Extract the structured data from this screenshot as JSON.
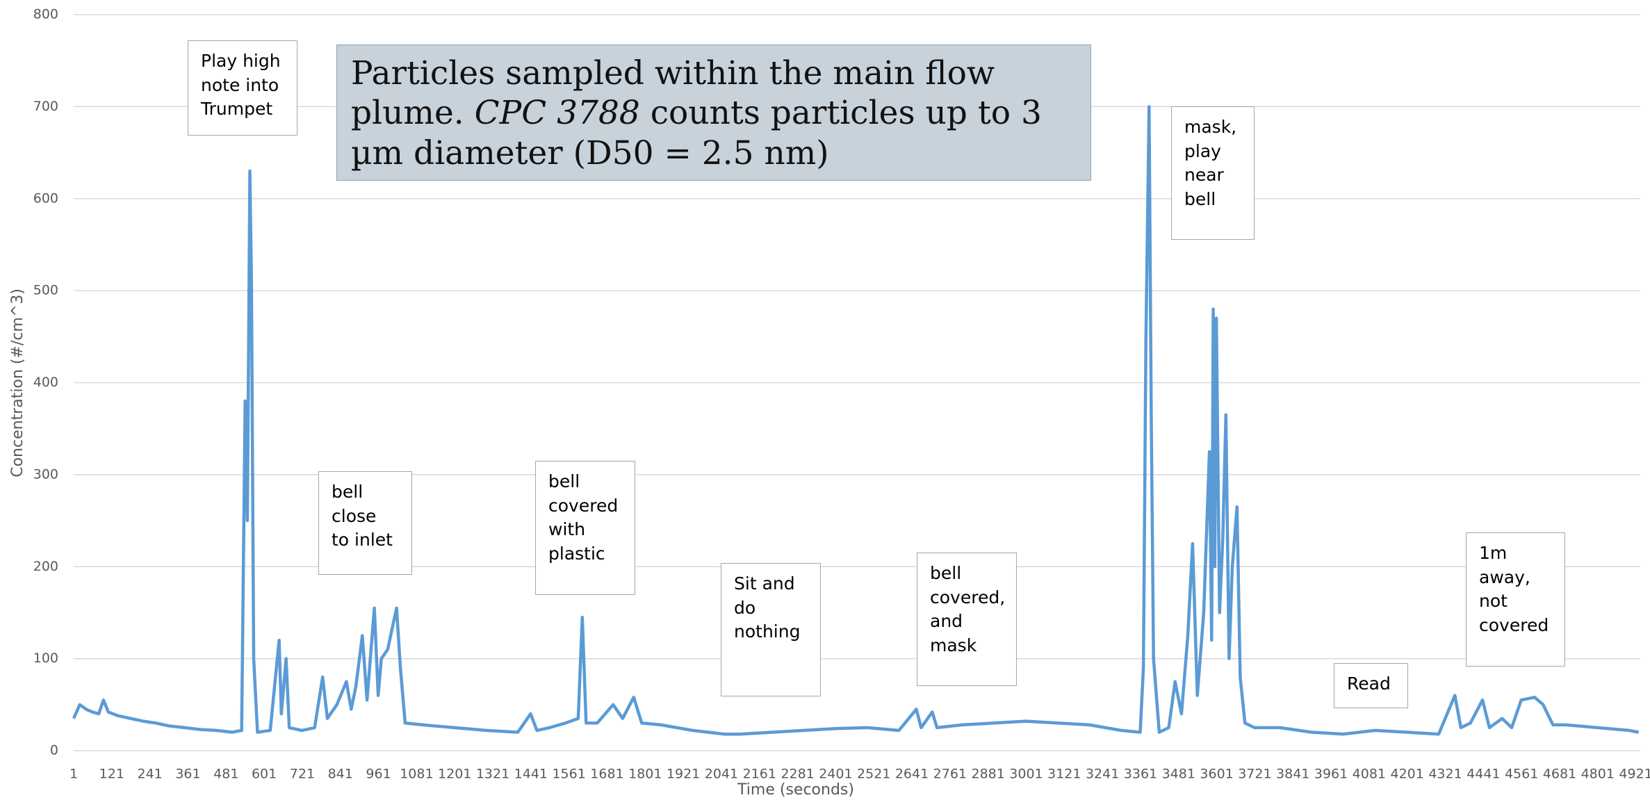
{
  "chart_data": {
    "type": "line",
    "x_label": "Time (seconds)",
    "y_label": "Concentration (#/cm^3)",
    "title_box": [
      "Particles sampled within the main flow plume. ",
      "CPC 3788",
      " counts particles up to 3 µm diameter (D50 = 2.5 nm)"
    ],
    "annotations": [
      "Play high note into Trumpet",
      "bell close to inlet",
      "bell covered with plastic",
      "Sit and do nothing",
      "bell covered, and mask",
      "mask, play near bell",
      "Read",
      "1m away, not covered"
    ],
    "color": "#5b9bd5",
    "grid": true,
    "xlim": [
      1,
      4935
    ],
    "xticks": [
      1,
      121,
      241,
      361,
      481,
      601,
      721,
      841,
      961,
      1081,
      1201,
      1321,
      1441,
      1561,
      1681,
      1801,
      1921,
      2041,
      2161,
      2281,
      2401,
      2521,
      2641,
      2761,
      2881,
      3001,
      3121,
      3241,
      3361,
      3481,
      3601,
      3721,
      3841,
      3961,
      4081,
      4201,
      4321,
      4441,
      4561,
      4681,
      4801,
      4921
    ],
    "ylim": [
      0,
      800
    ],
    "yticks": [
      0,
      100,
      200,
      300,
      400,
      500,
      600,
      700,
      800
    ],
    "x": [
      1,
      20,
      40,
      60,
      80,
      95,
      110,
      140,
      180,
      220,
      260,
      300,
      350,
      400,
      450,
      500,
      530,
      541,
      548,
      556,
      561,
      568,
      580,
      620,
      648,
      655,
      670,
      680,
      720,
      760,
      785,
      800,
      830,
      860,
      875,
      890,
      910,
      925,
      948,
      960,
      970,
      990,
      1018,
      1030,
      1045,
      1100,
      1200,
      1300,
      1400,
      1440,
      1460,
      1500,
      1550,
      1590,
      1603,
      1615,
      1650,
      1700,
      1730,
      1765,
      1790,
      1850,
      1950,
      2050,
      2100,
      2200,
      2300,
      2400,
      2500,
      2600,
      2655,
      2670,
      2705,
      2720,
      2800,
      2900,
      3000,
      3100,
      3200,
      3300,
      3360,
      3370,
      3378,
      3388,
      3395,
      3402,
      3420,
      3450,
      3470,
      3490,
      3510,
      3525,
      3540,
      3560,
      3578,
      3585,
      3590,
      3595,
      3600,
      3610,
      3620,
      3630,
      3640,
      3650,
      3665,
      3675,
      3690,
      3720,
      3800,
      3900,
      4000,
      4100,
      4200,
      4300,
      4351,
      4370,
      4400,
      4438,
      4460,
      4500,
      4530,
      4560,
      4602,
      4629,
      4660,
      4700,
      4800,
      4900,
      4930
    ],
    "values": [
      35,
      50,
      45,
      42,
      40,
      55,
      42,
      38,
      35,
      32,
      30,
      27,
      25,
      23,
      22,
      20,
      22,
      380,
      250,
      630,
      510,
      100,
      20,
      22,
      120,
      40,
      100,
      25,
      22,
      25,
      80,
      35,
      50,
      75,
      45,
      70,
      125,
      55,
      155,
      60,
      100,
      110,
      155,
      90,
      30,
      28,
      25,
      22,
      20,
      40,
      22,
      25,
      30,
      35,
      145,
      30,
      30,
      50,
      35,
      58,
      30,
      28,
      22,
      18,
      18,
      20,
      22,
      24,
      25,
      22,
      45,
      25,
      42,
      25,
      28,
      30,
      32,
      30,
      28,
      22,
      20,
      90,
      445,
      700,
      355,
      100,
      20,
      25,
      75,
      40,
      125,
      225,
      60,
      150,
      325,
      120,
      480,
      200,
      470,
      150,
      230,
      365,
      100,
      200,
      265,
      80,
      30,
      25,
      25,
      20,
      18,
      22,
      20,
      18,
      60,
      25,
      30,
      55,
      25,
      35,
      25,
      55,
      58,
      50,
      28,
      28,
      25,
      22,
      20
    ]
  }
}
